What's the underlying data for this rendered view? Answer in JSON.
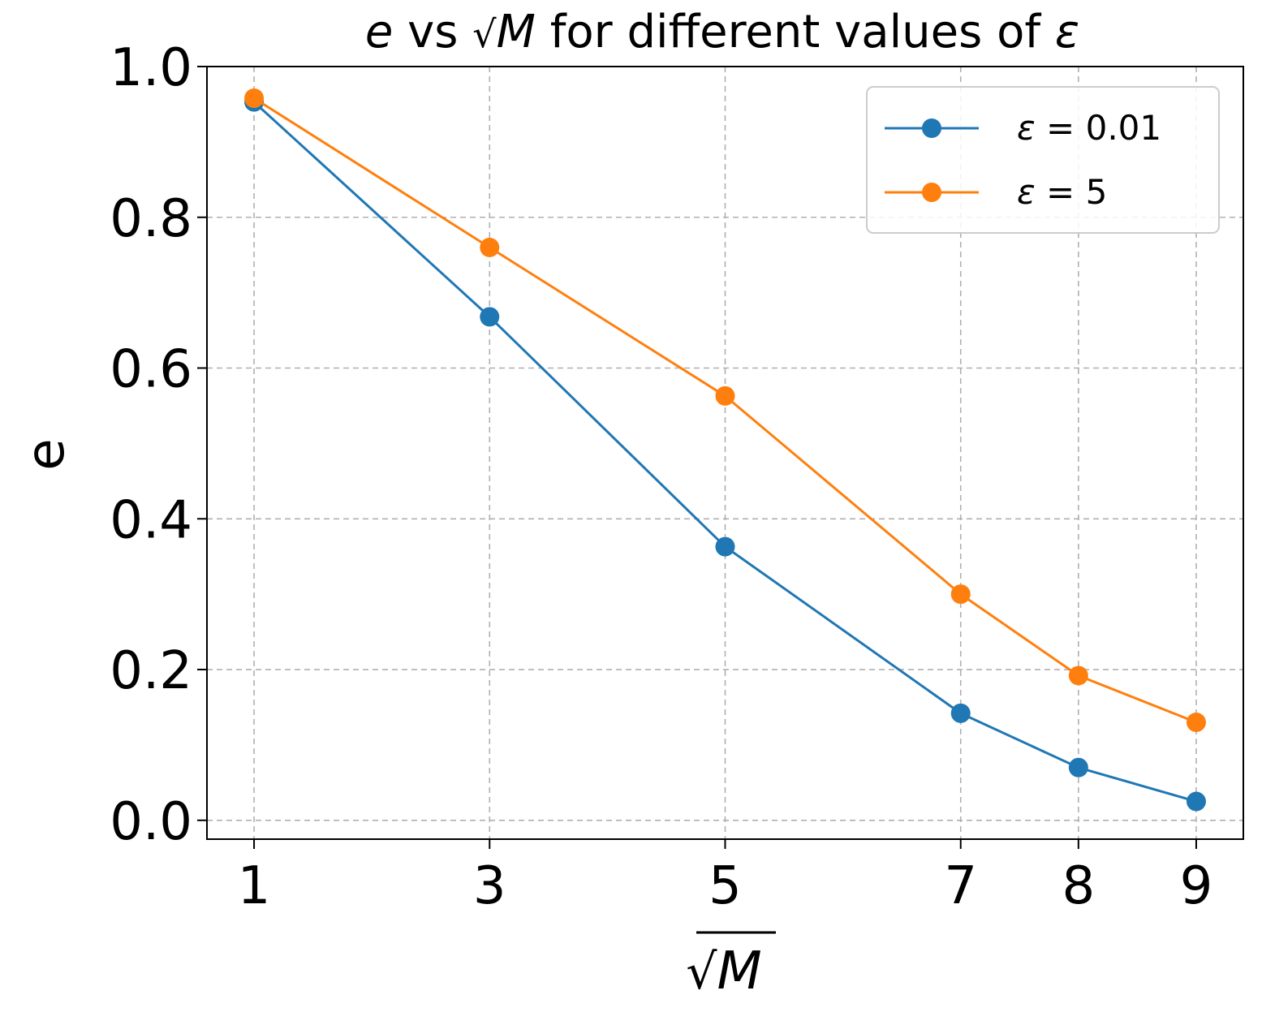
{
  "chart_data": {
    "type": "line",
    "title_parts": [
      "e",
      " vs ",
      "√",
      "M",
      "  for different values of ",
      "ε"
    ],
    "xlabel_parts": [
      "√",
      "M"
    ],
    "ylabel": "e",
    "categories": [
      1,
      3,
      5,
      7,
      8,
      9
    ],
    "x_ticks": [
      1,
      3,
      5,
      7,
      8,
      9
    ],
    "x_tick_labels": [
      "1",
      "3",
      "5",
      "7",
      "8",
      "9"
    ],
    "xlim": [
      0.6,
      9.4
    ],
    "y_ticks": [
      0.0,
      0.2,
      0.4,
      0.6,
      0.8,
      1.0
    ],
    "y_tick_labels": [
      "0.0",
      "0.2",
      "0.4",
      "0.6",
      "0.8",
      "1.0"
    ],
    "ylim": [
      -0.025,
      1.0
    ],
    "grid": true,
    "legend_position": "top-right",
    "series": [
      {
        "name": "ε = 0.01",
        "legend_parts": [
          "ε",
          " = 0.01"
        ],
        "color": "#1f77b4",
        "x": [
          1,
          3,
          5,
          7,
          8,
          9
        ],
        "values": [
          0.953,
          0.668,
          0.363,
          0.142,
          0.07,
          0.025
        ]
      },
      {
        "name": "ε = 5",
        "legend_parts": [
          "ε",
          " = 5"
        ],
        "color": "#ff7f0e",
        "x": [
          1,
          3,
          5,
          7,
          8,
          9
        ],
        "values": [
          0.958,
          0.76,
          0.563,
          0.3,
          0.192,
          0.13
        ]
      }
    ]
  }
}
